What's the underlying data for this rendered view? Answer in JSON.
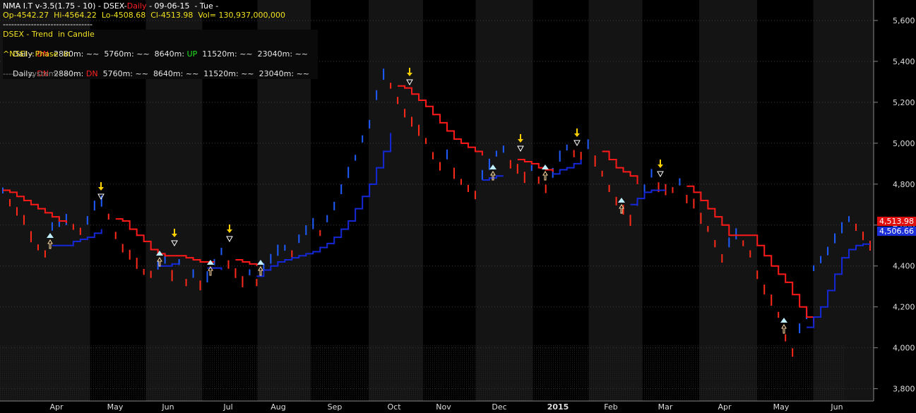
{
  "header": {
    "title_white": "NMA I.T v-3.5(1.75 - 10) - DSEX-",
    "title_red": "Daily",
    "title_white2": " - 09-06-15  - Tue -",
    "ohlc": "Op-4542.27  Hi-4564.22  Lo-4508.68  Cl-4513.98  Vol= 130,937,000,000",
    "dashes": "--------------------------------"
  },
  "panel": {
    "row1": {
      "label": "DSEX - Trend  in Candle"
    },
    "row2": {
      "daily": "Daily:",
      "d_state": "DN",
      "t1": "2880m:",
      "s1": "~~",
      "t2": "5760m:",
      "s2": "~~",
      "t3": "8640m:",
      "s3": "UP",
      "t4": "11520m:",
      "s4": "~~",
      "t5": "23040m:",
      "s5": "~~"
    },
    "row3": {
      "label": "^NSEI - Phase  in"
    },
    "row4": {
      "daily": "Daily:",
      "d_state": "DN",
      "t1": "2880m:",
      "s1": "DN",
      "t2": "5760m:",
      "s2": "~~",
      "t3": "8640m:",
      "s3": "~~",
      "t4": "11520m:",
      "s4": "~~",
      "t5": "23040m:",
      "s5": "~~"
    },
    "row5": {
      "label": "---------system---------"
    }
  },
  "price_labels": {
    "last": "4,513.98",
    "line": "4,506.66"
  },
  "colors": {
    "background": "#000000",
    "up_bar": "#1e5cff",
    "down_bar": "#ff2a1a",
    "red_line": "#ff1a1a",
    "blue_line": "#1428d8",
    "grid": "#3a3a3a",
    "axis_text": "#dddddd",
    "arrow_up": "#bfefff",
    "arrow_down": "#ffd000"
  },
  "chart_data": {
    "type": "line",
    "title": "DSEX",
    "y_axis": {
      "ticks": [
        3800,
        4000,
        4200,
        4400,
        4600,
        4800,
        5000,
        5200,
        5400,
        5600
      ],
      "tick_labels": [
        "3,800",
        "4,000",
        "4,200",
        "4,400",
        "4,600",
        "4,800",
        "5,000",
        "5,200",
        "5,400",
        "5,600"
      ],
      "side": "right",
      "ylim": [
        3740,
        5700
      ]
    },
    "x_axis": {
      "labels": [
        "Apr",
        "May",
        "Jun",
        "Jul",
        "Aug",
        "Sep",
        "Oct",
        "Nov",
        "Dec",
        "2015",
        "Feb",
        "Mar",
        "Apr",
        "May",
        "Jun"
      ]
    },
    "close_series": [
      4760,
      4720,
      4680,
      4640,
      4560,
      4500,
      4470,
      4580,
      4600,
      4610,
      4600,
      4580,
      4610,
      4680,
      4700,
      4650,
      4560,
      4500,
      4470,
      4430,
      4380,
      4370,
      4390,
      4420,
      4370,
      4410,
      4330,
      4350,
      4320,
      4330,
      4410,
      4460,
      4420,
      4380,
      4340,
      4360,
      4330,
      4380,
      4420,
      4460,
      4480,
      4470,
      4520,
      4560,
      4590,
      4570,
      4620,
      4680,
      4760,
      4840,
      4920,
      5010,
      5080,
      5220,
      5320,
      5290,
      5220,
      5160,
      5120,
      5080,
      5020,
      4950,
      4900,
      4930,
      4870,
      4820,
      4790,
      4760,
      4830,
      4880,
      4940,
      4960,
      4910,
      4890,
      4850,
      4870,
      4830,
      4790,
      4840,
      4920,
      4970,
      4960,
      4950,
      4980,
      4930,
      4860,
      4790,
      4730,
      4690,
      4640,
      4700,
      4770,
      4840,
      4800,
      4790,
      4780,
      4800,
      4740,
      4720,
      4650,
      4590,
      4520,
      4450,
      4500,
      4540,
      4520,
      4470,
      4370,
      4300,
      4250,
      4170,
      4060,
      3990,
      4080,
      4150,
      4380,
      4420,
      4460,
      4520,
      4570,
      4620,
      4600,
      4560,
      4514
    ],
    "red_stop_series": [
      4770,
      4760,
      4740,
      4720,
      4700,
      4680,
      4660,
      4640,
      4620,
      4610,
      null,
      null,
      null,
      null,
      null,
      null,
      4630,
      4620,
      4580,
      4550,
      4520,
      4480,
      4460,
      4450,
      4450,
      4450,
      4440,
      4430,
      4420,
      4420,
      4420,
      null,
      null,
      4430,
      4420,
      4410,
      4400,
      null,
      null,
      null,
      null,
      null,
      null,
      null,
      null,
      null,
      null,
      null,
      null,
      null,
      null,
      null,
      null,
      null,
      null,
      null,
      5280,
      5270,
      5240,
      5210,
      5180,
      5140,
      5100,
      5060,
      5020,
      5000,
      4980,
      4960,
      4940,
      null,
      null,
      null,
      null,
      4920,
      4910,
      4900,
      4880,
      4870,
      4860,
      null,
      null,
      null,
      null,
      null,
      null,
      4960,
      4920,
      4880,
      4860,
      4840,
      4800,
      null,
      null,
      null,
      null,
      null,
      null,
      4790,
      4760,
      4720,
      4680,
      4640,
      4600,
      4550,
      4550,
      4550,
      4550,
      4500,
      4450,
      4400,
      4360,
      4320,
      4260,
      4200,
      4150,
      4120,
      null,
      null,
      null,
      null,
      null,
      null,
      null,
      null,
      null,
      null
    ],
    "blue_stop_series": [
      null,
      null,
      null,
      null,
      null,
      null,
      null,
      4500,
      4500,
      4500,
      4520,
      4530,
      4540,
      4560,
      4580,
      null,
      null,
      null,
      null,
      null,
      null,
      null,
      4400,
      4400,
      4410,
      4410,
      null,
      null,
      null,
      4390,
      4390,
      4380,
      null,
      null,
      null,
      null,
      4350,
      4380,
      4400,
      4420,
      4430,
      4440,
      4450,
      4460,
      4470,
      4490,
      4510,
      4540,
      4580,
      4620,
      4680,
      4740,
      4800,
      4880,
      4960,
      5050,
      null,
      null,
      null,
      null,
      null,
      null,
      null,
      null,
      null,
      null,
      null,
      null,
      4820,
      4830,
      4840,
      4840,
      null,
      null,
      null,
      null,
      null,
      null,
      4850,
      4870,
      4880,
      4900,
      4920,
      null,
      null,
      null,
      null,
      null,
      null,
      4700,
      4730,
      4760,
      4770,
      4770,
      4770,
      null,
      null,
      null,
      null,
      null,
      null,
      null,
      null,
      null,
      null,
      null,
      null,
      null,
      null,
      null,
      null,
      null,
      null,
      null,
      4100,
      4150,
      4200,
      4280,
      4360,
      4440,
      4480,
      4500,
      4507,
      4507
    ]
  }
}
